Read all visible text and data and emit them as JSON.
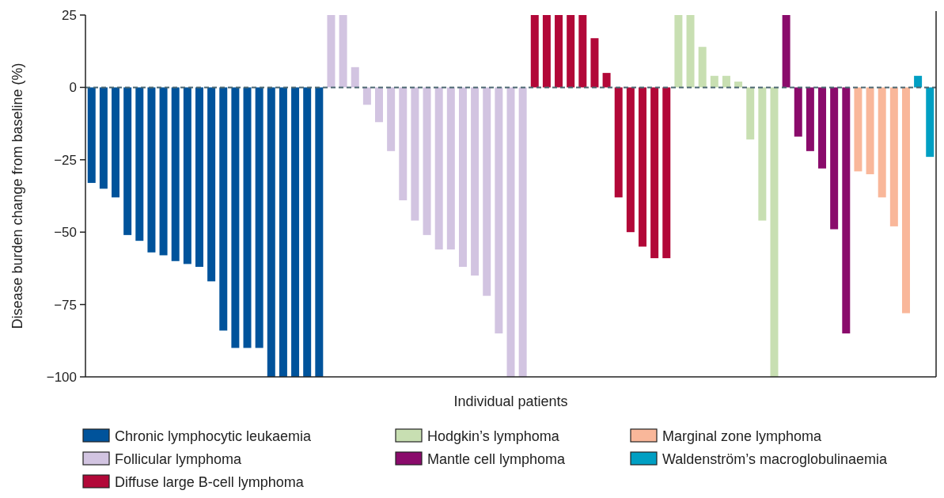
{
  "chart_data": {
    "type": "bar",
    "xlabel": "Individual patients",
    "ylabel": "Disease burden change from baseline (%)",
    "categories": [
      null,
      null,
      null,
      null,
      null,
      null,
      null,
      null,
      null,
      null,
      null,
      null,
      null,
      null,
      null,
      null,
      null,
      null,
      null,
      null,
      null,
      null,
      null,
      null,
      null,
      null,
      null,
      null,
      null,
      null,
      null,
      null,
      null,
      null,
      null,
      null,
      null,
      null,
      null,
      null,
      null,
      null,
      null,
      null,
      null,
      null,
      null,
      null,
      null,
      null,
      null,
      null,
      null,
      null,
      null,
      null,
      null,
      null,
      null,
      null,
      null,
      null,
      null,
      null,
      null,
      null,
      null,
      null,
      null,
      null,
      null
    ],
    "ylim": [
      -100,
      25
    ],
    "yticks": [
      25,
      0,
      -25,
      -50,
      -75,
      -100
    ],
    "grid": false,
    "legend": "bottom",
    "ref_lines": [
      {
        "axis": "y",
        "value": 0,
        "color": "#4a6670",
        "line_style": "dashed"
      }
    ],
    "series": [
      {
        "name": "Chronic lymphocytic leukaemia",
        "color": "#00539b",
        "values": [
          -33,
          -35,
          -38,
          -51,
          -53,
          -57,
          -58,
          -60,
          -61,
          -62,
          -67,
          -84,
          -90,
          -90,
          -90,
          -100,
          -100,
          -100,
          -100,
          -100,
          null,
          null,
          null,
          null,
          null,
          null,
          null,
          null,
          null,
          null,
          null,
          null,
          null,
          null,
          null,
          null,
          null,
          null,
          null,
          null,
          null,
          null,
          null,
          null,
          null,
          null,
          null,
          null,
          null,
          null,
          null,
          null,
          null,
          null,
          null,
          null,
          null,
          null,
          null,
          null,
          null,
          null,
          null,
          null,
          null,
          null,
          null,
          null,
          null,
          null,
          null
        ]
      },
      {
        "name": "Follicular lymphoma",
        "color": "#d2c4e1",
        "values": [
          null,
          null,
          null,
          null,
          null,
          null,
          null,
          null,
          null,
          null,
          null,
          null,
          null,
          null,
          null,
          null,
          null,
          null,
          null,
          null,
          25,
          25,
          7,
          -6,
          -12,
          -22,
          -39,
          -46,
          -51,
          -56,
          -56,
          -62,
          -65,
          -72,
          -85,
          -100,
          -100,
          null,
          null,
          null,
          null,
          null,
          null,
          null,
          null,
          null,
          null,
          null,
          null,
          null,
          null,
          null,
          null,
          null,
          null,
          null,
          null,
          null,
          null,
          null,
          null,
          null,
          null,
          null,
          null,
          null,
          null,
          null,
          null,
          null,
          null
        ]
      },
      {
        "name": "Diffuse large B-cell lymphoma",
        "color": "#b20838",
        "values": [
          null,
          null,
          null,
          null,
          null,
          null,
          null,
          null,
          null,
          null,
          null,
          null,
          null,
          null,
          null,
          null,
          null,
          null,
          null,
          null,
          null,
          null,
          null,
          null,
          null,
          null,
          null,
          null,
          null,
          null,
          null,
          null,
          null,
          null,
          null,
          null,
          null,
          25,
          25,
          25,
          25,
          25,
          17,
          5,
          -38,
          -50,
          -55,
          -59,
          -59,
          null,
          null,
          null,
          null,
          null,
          null,
          null,
          null,
          null,
          null,
          null,
          null,
          null,
          null,
          null,
          null,
          null,
          null,
          null,
          null,
          null,
          null
        ]
      },
      {
        "name": "Hodgkin’s lymphoma",
        "color": "#c8dfb2",
        "values": [
          null,
          null,
          null,
          null,
          null,
          null,
          null,
          null,
          null,
          null,
          null,
          null,
          null,
          null,
          null,
          null,
          null,
          null,
          null,
          null,
          null,
          null,
          null,
          null,
          null,
          null,
          null,
          null,
          null,
          null,
          null,
          null,
          null,
          null,
          null,
          null,
          null,
          null,
          null,
          null,
          null,
          null,
          null,
          null,
          null,
          null,
          null,
          null,
          null,
          25,
          25,
          14,
          4,
          4,
          2,
          -18,
          -46,
          -100,
          null,
          null,
          null,
          null,
          null,
          null,
          null,
          null,
          null,
          null,
          null,
          null,
          null
        ]
      },
      {
        "name": "Mantle cell lymphoma",
        "color": "#8a0b6b",
        "values": [
          null,
          null,
          null,
          null,
          null,
          null,
          null,
          null,
          null,
          null,
          null,
          null,
          null,
          null,
          null,
          null,
          null,
          null,
          null,
          null,
          null,
          null,
          null,
          null,
          null,
          null,
          null,
          null,
          null,
          null,
          null,
          null,
          null,
          null,
          null,
          null,
          null,
          null,
          null,
          null,
          null,
          null,
          null,
          null,
          null,
          null,
          null,
          null,
          null,
          null,
          null,
          null,
          null,
          null,
          null,
          null,
          null,
          null,
          25,
          -17,
          -22,
          -28,
          -49,
          -85,
          null,
          null,
          null,
          null,
          null,
          null,
          null
        ]
      },
      {
        "name": "Marginal zone lymphoma",
        "color": "#f9b79a",
        "values": [
          null,
          null,
          null,
          null,
          null,
          null,
          null,
          null,
          null,
          null,
          null,
          null,
          null,
          null,
          null,
          null,
          null,
          null,
          null,
          null,
          null,
          null,
          null,
          null,
          null,
          null,
          null,
          null,
          null,
          null,
          null,
          null,
          null,
          null,
          null,
          null,
          null,
          null,
          null,
          null,
          null,
          null,
          null,
          null,
          null,
          null,
          null,
          null,
          null,
          null,
          null,
          null,
          null,
          null,
          null,
          null,
          null,
          null,
          null,
          null,
          null,
          null,
          null,
          null,
          -29,
          -30,
          -38,
          -48,
          -78,
          null,
          null
        ]
      },
      {
        "name": "Waldenström’s macroglobulinaemia",
        "color": "#009fc3",
        "values": [
          null,
          null,
          null,
          null,
          null,
          null,
          null,
          null,
          null,
          null,
          null,
          null,
          null,
          null,
          null,
          null,
          null,
          null,
          null,
          null,
          null,
          null,
          null,
          null,
          null,
          null,
          null,
          null,
          null,
          null,
          null,
          null,
          null,
          null,
          null,
          null,
          null,
          null,
          null,
          null,
          null,
          null,
          null,
          null,
          null,
          null,
          null,
          null,
          null,
          null,
          null,
          null,
          null,
          null,
          null,
          null,
          null,
          null,
          null,
          null,
          null,
          null,
          null,
          null,
          null,
          null,
          null,
          null,
          null,
          4,
          -24
        ]
      }
    ]
  }
}
